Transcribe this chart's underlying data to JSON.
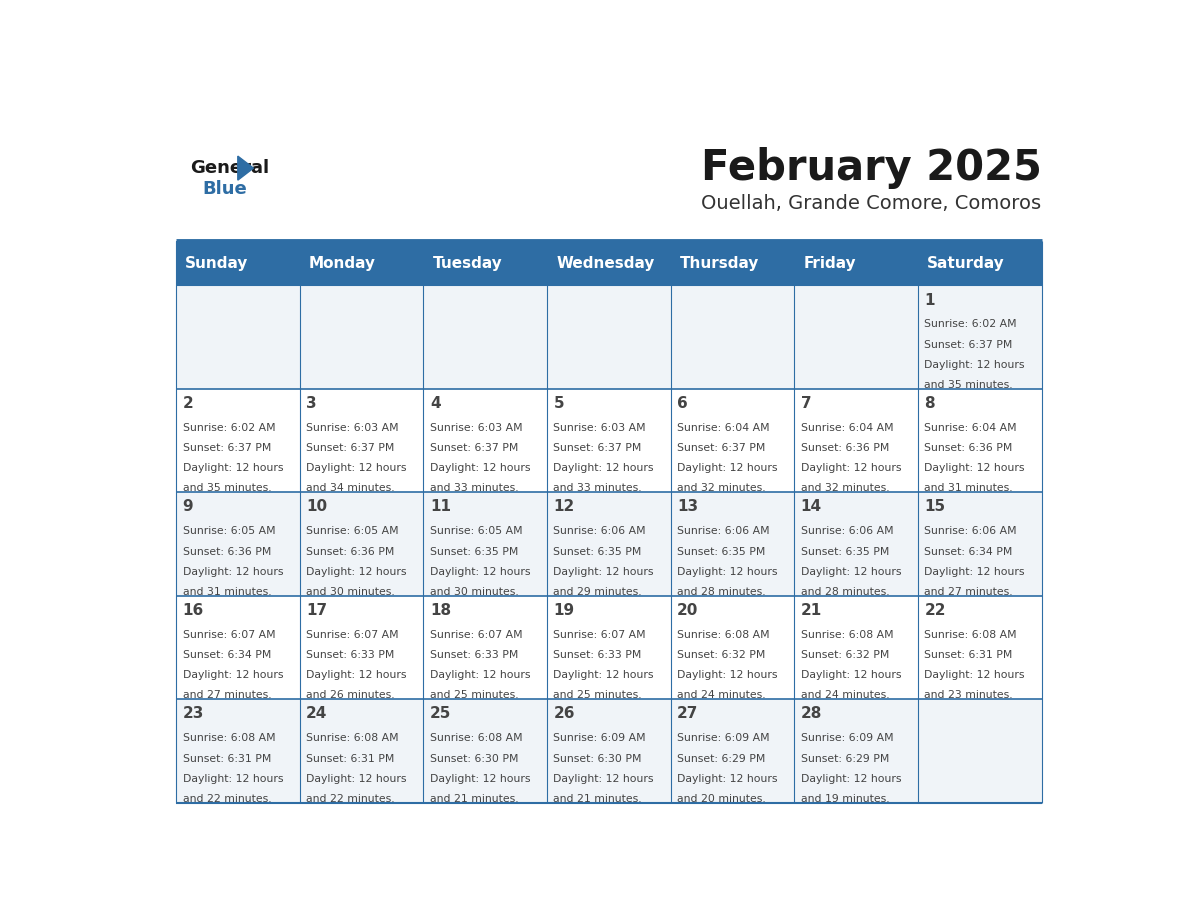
{
  "title": "February 2025",
  "subtitle": "Ouellah, Grande Comore, Comoros",
  "days_of_week": [
    "Sunday",
    "Monday",
    "Tuesday",
    "Wednesday",
    "Thursday",
    "Friday",
    "Saturday"
  ],
  "header_bg": "#2E6DA4",
  "header_text": "#FFFFFF",
  "cell_bg_odd": "#F0F4F8",
  "cell_bg_even": "#FFFFFF",
  "line_color": "#2E6DA4",
  "text_color": "#444444",
  "title_color": "#1a1a1a",
  "subtitle_color": "#333333",
  "logo_general_color": "#1a1a1a",
  "logo_blue_color": "#2E6DA4",
  "days": [
    {
      "day": 1,
      "col": 6,
      "row": 0,
      "sunrise": "6:02 AM",
      "sunset": "6:37 PM",
      "daylight_hours": 12,
      "daylight_minutes": 35
    },
    {
      "day": 2,
      "col": 0,
      "row": 1,
      "sunrise": "6:02 AM",
      "sunset": "6:37 PM",
      "daylight_hours": 12,
      "daylight_minutes": 35
    },
    {
      "day": 3,
      "col": 1,
      "row": 1,
      "sunrise": "6:03 AM",
      "sunset": "6:37 PM",
      "daylight_hours": 12,
      "daylight_minutes": 34
    },
    {
      "day": 4,
      "col": 2,
      "row": 1,
      "sunrise": "6:03 AM",
      "sunset": "6:37 PM",
      "daylight_hours": 12,
      "daylight_minutes": 33
    },
    {
      "day": 5,
      "col": 3,
      "row": 1,
      "sunrise": "6:03 AM",
      "sunset": "6:37 PM",
      "daylight_hours": 12,
      "daylight_minutes": 33
    },
    {
      "day": 6,
      "col": 4,
      "row": 1,
      "sunrise": "6:04 AM",
      "sunset": "6:37 PM",
      "daylight_hours": 12,
      "daylight_minutes": 32
    },
    {
      "day": 7,
      "col": 5,
      "row": 1,
      "sunrise": "6:04 AM",
      "sunset": "6:36 PM",
      "daylight_hours": 12,
      "daylight_minutes": 32
    },
    {
      "day": 8,
      "col": 6,
      "row": 1,
      "sunrise": "6:04 AM",
      "sunset": "6:36 PM",
      "daylight_hours": 12,
      "daylight_minutes": 31
    },
    {
      "day": 9,
      "col": 0,
      "row": 2,
      "sunrise": "6:05 AM",
      "sunset": "6:36 PM",
      "daylight_hours": 12,
      "daylight_minutes": 31
    },
    {
      "day": 10,
      "col": 1,
      "row": 2,
      "sunrise": "6:05 AM",
      "sunset": "6:36 PM",
      "daylight_hours": 12,
      "daylight_minutes": 30
    },
    {
      "day": 11,
      "col": 2,
      "row": 2,
      "sunrise": "6:05 AM",
      "sunset": "6:35 PM",
      "daylight_hours": 12,
      "daylight_minutes": 30
    },
    {
      "day": 12,
      "col": 3,
      "row": 2,
      "sunrise": "6:06 AM",
      "sunset": "6:35 PM",
      "daylight_hours": 12,
      "daylight_minutes": 29
    },
    {
      "day": 13,
      "col": 4,
      "row": 2,
      "sunrise": "6:06 AM",
      "sunset": "6:35 PM",
      "daylight_hours": 12,
      "daylight_minutes": 28
    },
    {
      "day": 14,
      "col": 5,
      "row": 2,
      "sunrise": "6:06 AM",
      "sunset": "6:35 PM",
      "daylight_hours": 12,
      "daylight_minutes": 28
    },
    {
      "day": 15,
      "col": 6,
      "row": 2,
      "sunrise": "6:06 AM",
      "sunset": "6:34 PM",
      "daylight_hours": 12,
      "daylight_minutes": 27
    },
    {
      "day": 16,
      "col": 0,
      "row": 3,
      "sunrise": "6:07 AM",
      "sunset": "6:34 PM",
      "daylight_hours": 12,
      "daylight_minutes": 27
    },
    {
      "day": 17,
      "col": 1,
      "row": 3,
      "sunrise": "6:07 AM",
      "sunset": "6:33 PM",
      "daylight_hours": 12,
      "daylight_minutes": 26
    },
    {
      "day": 18,
      "col": 2,
      "row": 3,
      "sunrise": "6:07 AM",
      "sunset": "6:33 PM",
      "daylight_hours": 12,
      "daylight_minutes": 25
    },
    {
      "day": 19,
      "col": 3,
      "row": 3,
      "sunrise": "6:07 AM",
      "sunset": "6:33 PM",
      "daylight_hours": 12,
      "daylight_minutes": 25
    },
    {
      "day": 20,
      "col": 4,
      "row": 3,
      "sunrise": "6:08 AM",
      "sunset": "6:32 PM",
      "daylight_hours": 12,
      "daylight_minutes": 24
    },
    {
      "day": 21,
      "col": 5,
      "row": 3,
      "sunrise": "6:08 AM",
      "sunset": "6:32 PM",
      "daylight_hours": 12,
      "daylight_minutes": 24
    },
    {
      "day": 22,
      "col": 6,
      "row": 3,
      "sunrise": "6:08 AM",
      "sunset": "6:31 PM",
      "daylight_hours": 12,
      "daylight_minutes": 23
    },
    {
      "day": 23,
      "col": 0,
      "row": 4,
      "sunrise": "6:08 AM",
      "sunset": "6:31 PM",
      "daylight_hours": 12,
      "daylight_minutes": 22
    },
    {
      "day": 24,
      "col": 1,
      "row": 4,
      "sunrise": "6:08 AM",
      "sunset": "6:31 PM",
      "daylight_hours": 12,
      "daylight_minutes": 22
    },
    {
      "day": 25,
      "col": 2,
      "row": 4,
      "sunrise": "6:08 AM",
      "sunset": "6:30 PM",
      "daylight_hours": 12,
      "daylight_minutes": 21
    },
    {
      "day": 26,
      "col": 3,
      "row": 4,
      "sunrise": "6:09 AM",
      "sunset": "6:30 PM",
      "daylight_hours": 12,
      "daylight_minutes": 21
    },
    {
      "day": 27,
      "col": 4,
      "row": 4,
      "sunrise": "6:09 AM",
      "sunset": "6:29 PM",
      "daylight_hours": 12,
      "daylight_minutes": 20
    },
    {
      "day": 28,
      "col": 5,
      "row": 4,
      "sunrise": "6:09 AM",
      "sunset": "6:29 PM",
      "daylight_hours": 12,
      "daylight_minutes": 19
    }
  ],
  "num_rows": 5,
  "num_cols": 7
}
